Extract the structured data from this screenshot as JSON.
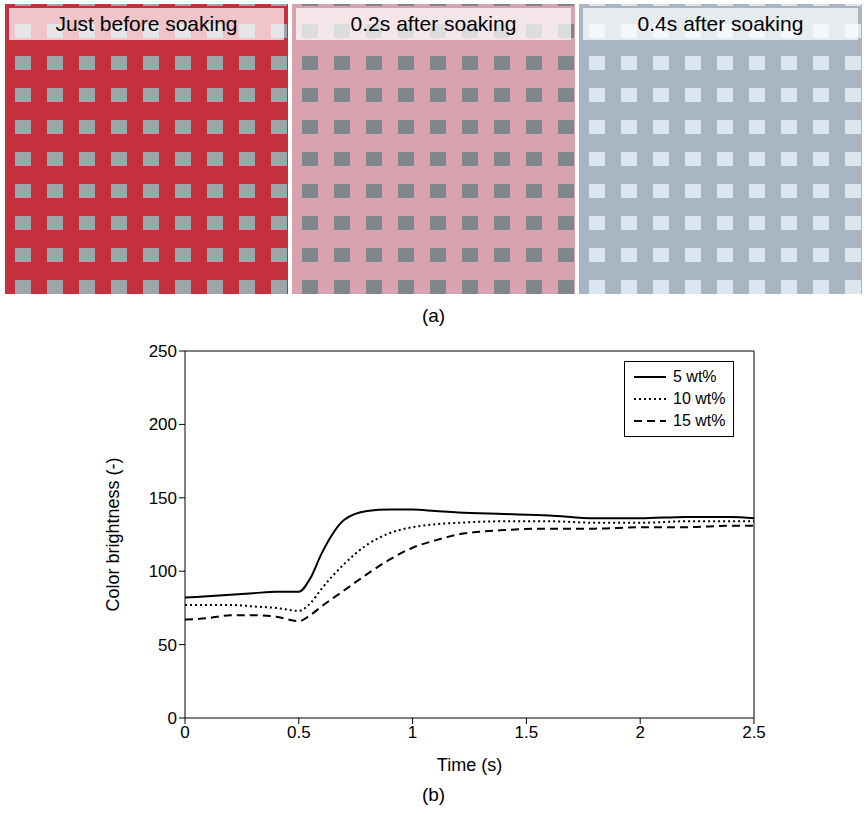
{
  "photos": {
    "caption": "(a)",
    "panels": [
      {
        "title": "Just before soaking"
      },
      {
        "title": "0.2s after soaking"
      },
      {
        "title": "0.4s after soaking"
      }
    ]
  },
  "chart_data": {
    "type": "line",
    "caption": "(b)",
    "x_label": "Time (s)",
    "y_label": "Color brightness (-)",
    "x": [
      0,
      0.1,
      0.2,
      0.3,
      0.4,
      0.5,
      0.55,
      0.6,
      0.7,
      0.8,
      0.9,
      1,
      1.1,
      1.2,
      1.4,
      1.6,
      1.8,
      2,
      2.2,
      2.4,
      2.5
    ],
    "xlim": [
      0,
      2.5
    ],
    "xticks": [
      0,
      0.5,
      1,
      1.5,
      2,
      2.5
    ],
    "ylim": [
      0,
      250
    ],
    "yticks": [
      0,
      50,
      100,
      150,
      200,
      250
    ],
    "legend": "upper right",
    "series": [
      {
        "name": "5 wt%",
        "color": "#000000",
        "line_style": "solid",
        "values": [
          82,
          83,
          84,
          85,
          86,
          86,
          95,
          112,
          135,
          141,
          142,
          142,
          141,
          140,
          139,
          138,
          136,
          136,
          137,
          137,
          136
        ]
      },
      {
        "name": "10 wt%",
        "color": "#000000",
        "line_style": "dotted",
        "values": [
          77,
          77,
          77,
          76,
          75,
          73,
          78,
          88,
          105,
          118,
          126,
          130,
          132,
          133,
          134,
          134,
          133,
          133,
          134,
          134,
          134
        ]
      },
      {
        "name": "15 wt%",
        "color": "#000000",
        "line_style": "dashed",
        "values": [
          67,
          68,
          70,
          70,
          69,
          66,
          70,
          76,
          87,
          98,
          108,
          116,
          121,
          125,
          128,
          129,
          129,
          130,
          130,
          131,
          131
        ]
      }
    ]
  }
}
